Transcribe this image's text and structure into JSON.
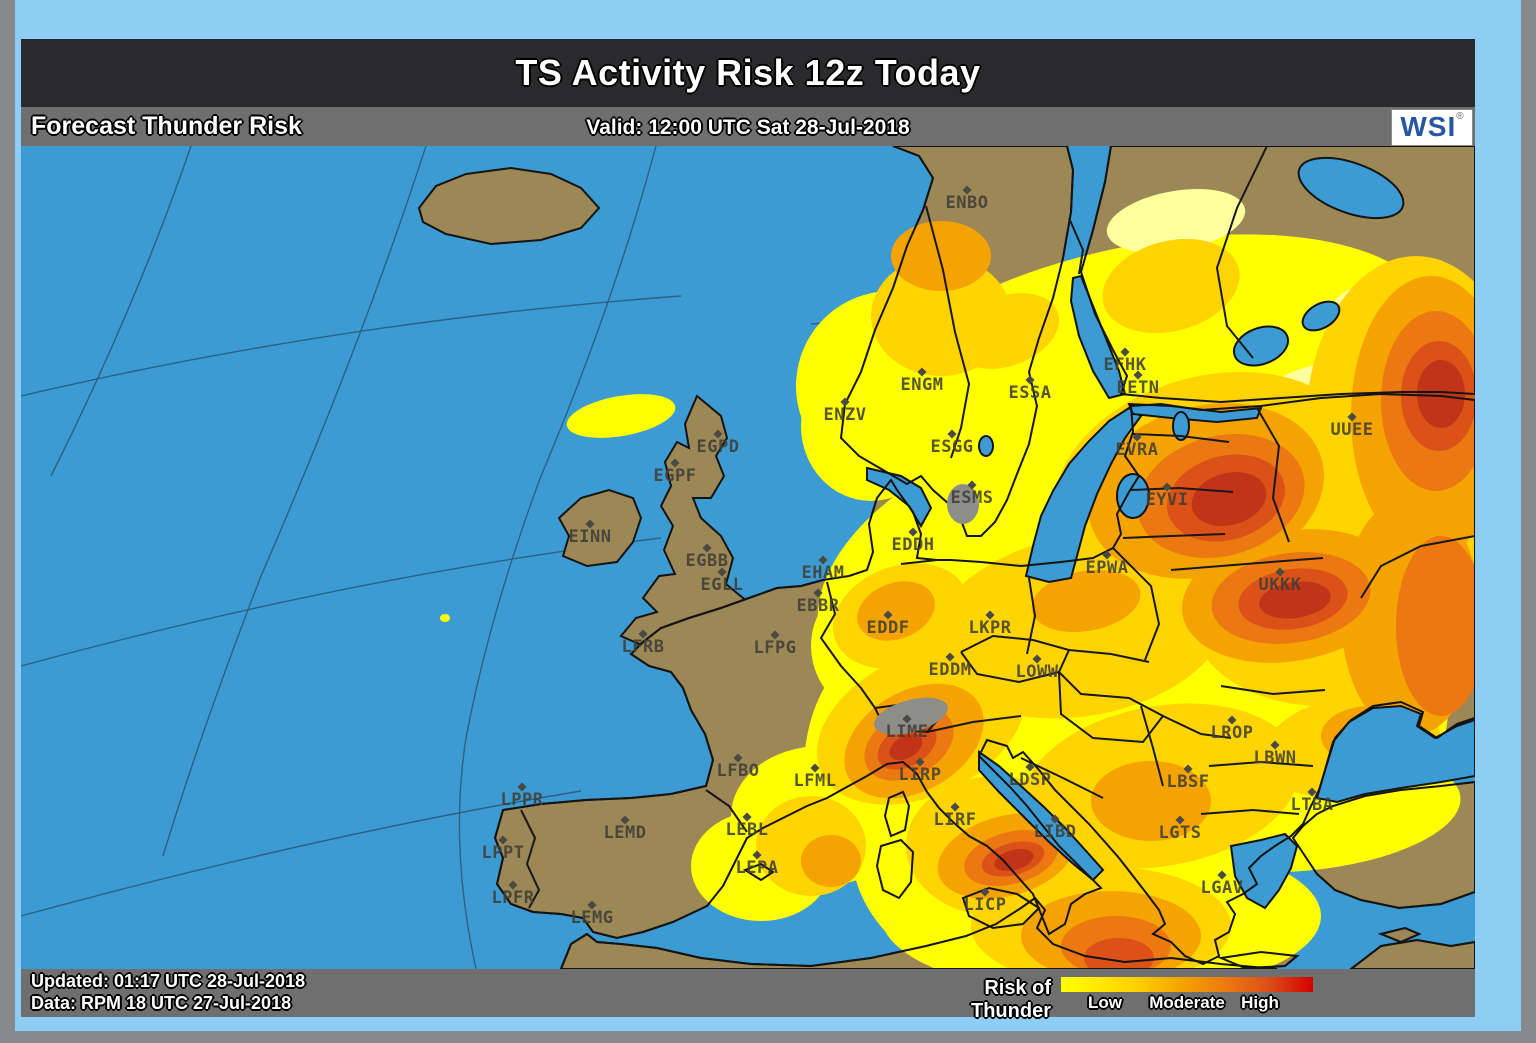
{
  "header": {
    "title": "TS Activity Risk 12z Today",
    "product": "Forecast Thunder Risk",
    "valid": "Valid: 12:00 UTC Sat 28-Jul-2018",
    "logo": "WSI",
    "logo_reg": "®"
  },
  "footer": {
    "updated": "Updated: 01:17 UTC 28-Jul-2018",
    "data_source": "Data: RPM 18 UTC 27-Jul-2018",
    "legend_title": "Risk of Thunder",
    "legend_labels": {
      "low": "Low",
      "moderate": "Moderate",
      "high": "High"
    }
  },
  "palette": {
    "page_bg": "#87898D",
    "frame_blue": "#8FCEF4",
    "title_bg": "#2A2A2C",
    "bar_gray": "#6F6F6F",
    "sea": "#3D9BD3",
    "land": "#9C8756",
    "coast": "#141414",
    "border": "#181818",
    "graticule": "#1E3340",
    "gray_patch": "#8E8E88",
    "wsi_blue": "#2757A4",
    "legend_high_end": "#D40000"
  },
  "map": {
    "risk_levels": [
      "#FFFF9E",
      "#FFFF00",
      "#FFD400",
      "#F5A300",
      "#EC7812",
      "#DB5118",
      "#C23418"
    ],
    "risk_blobs": [
      [
        1,
        870,
        240,
        95,
        95,
        0
      ],
      [
        1,
        1120,
        230,
        300,
        130,
        -12
      ],
      [
        1,
        1390,
        360,
        100,
        180,
        0
      ],
      [
        1,
        1070,
        420,
        280,
        150,
        -15
      ],
      [
        1,
        980,
        570,
        200,
        110,
        -25
      ],
      [
        1,
        1150,
        600,
        280,
        150,
        -10
      ],
      [
        1,
        970,
        700,
        140,
        130,
        0
      ],
      [
        1,
        830,
        600,
        45,
        90,
        10
      ],
      [
        1,
        800,
        670,
        90,
        70,
        0
      ],
      [
        1,
        740,
        720,
        70,
        55,
        0
      ],
      [
        1,
        1080,
        770,
        220,
        80,
        0
      ],
      [
        1,
        1280,
        665,
        160,
        60,
        -5
      ],
      [
        1,
        850,
        280,
        70,
        75,
        0
      ],
      [
        1,
        600,
        270,
        55,
        20,
        -10
      ],
      [
        1,
        424,
        472,
        5,
        4,
        0
      ],
      [
        1,
        880,
        500,
        90,
        80,
        0
      ],
      [
        0,
        1300,
        290,
        110,
        70,
        -20
      ],
      [
        0,
        1365,
        175,
        60,
        40,
        0
      ],
      [
        0,
        1155,
        75,
        70,
        30,
        -10
      ],
      [
        2,
        1190,
        340,
        160,
        110,
        -15
      ],
      [
        2,
        1395,
        280,
        110,
        170,
        0
      ],
      [
        2,
        920,
        170,
        70,
        60,
        0
      ],
      [
        2,
        985,
        185,
        55,
        35,
        -20
      ],
      [
        2,
        1150,
        140,
        70,
        45,
        -15
      ],
      [
        2,
        1060,
        480,
        150,
        90,
        -10
      ],
      [
        2,
        900,
        580,
        110,
        70,
        -25
      ],
      [
        2,
        1140,
        640,
        140,
        80,
        -10
      ],
      [
        2,
        975,
        700,
        90,
        70,
        0
      ],
      [
        2,
        1080,
        780,
        130,
        60,
        0
      ],
      [
        2,
        790,
        700,
        55,
        50,
        0
      ],
      [
        2,
        880,
        470,
        70,
        50,
        -20
      ],
      [
        2,
        1300,
        470,
        130,
        90,
        0
      ],
      [
        2,
        1330,
        600,
        90,
        50,
        -10
      ],
      [
        3,
        1185,
        345,
        120,
        85,
        -15
      ],
      [
        3,
        1410,
        270,
        80,
        140,
        0
      ],
      [
        3,
        1270,
        450,
        110,
        65,
        -10
      ],
      [
        3,
        893,
        595,
        75,
        50,
        -30
      ],
      [
        3,
        985,
        710,
        70,
        40,
        -15
      ],
      [
        3,
        1090,
        790,
        90,
        45,
        0
      ],
      [
        3,
        810,
        715,
        30,
        26,
        0
      ],
      [
        3,
        1130,
        655,
        60,
        40,
        0
      ],
      [
        3,
        1065,
        455,
        55,
        30,
        -10
      ],
      [
        3,
        875,
        465,
        40,
        28,
        -20
      ],
      [
        3,
        1390,
        470,
        70,
        120,
        0
      ],
      [
        3,
        920,
        110,
        50,
        35,
        0
      ],
      [
        3,
        1350,
        590,
        50,
        30,
        0
      ],
      [
        4,
        1200,
        350,
        85,
        60,
        -15
      ],
      [
        4,
        1415,
        255,
        55,
        90,
        0
      ],
      [
        4,
        1270,
        452,
        80,
        45,
        -8
      ],
      [
        4,
        888,
        598,
        48,
        32,
        -30
      ],
      [
        4,
        990,
        712,
        48,
        26,
        -15
      ],
      [
        4,
        1095,
        800,
        55,
        30,
        0
      ],
      [
        4,
        1420,
        480,
        45,
        90,
        0
      ],
      [
        5,
        1205,
        352,
        60,
        42,
        -15
      ],
      [
        5,
        1418,
        250,
        38,
        55,
        0
      ],
      [
        5,
        1272,
        453,
        55,
        30,
        -8
      ],
      [
        5,
        886,
        600,
        32,
        20,
        -30
      ],
      [
        5,
        992,
        713,
        32,
        16,
        -15
      ],
      [
        5,
        1098,
        812,
        35,
        20,
        0
      ],
      [
        6,
        1208,
        353,
        38,
        26,
        -15
      ],
      [
        6,
        1420,
        248,
        24,
        34,
        0
      ],
      [
        6,
        1274,
        454,
        36,
        18,
        -8
      ],
      [
        6,
        885,
        601,
        18,
        11,
        -30
      ],
      [
        6,
        993,
        714,
        20,
        10,
        -15
      ]
    ],
    "stations": [
      [
        "ENBO",
        946,
        62
      ],
      [
        "EGPD",
        697,
        306
      ],
      [
        "EGPF",
        654,
        335
      ],
      [
        "EINN",
        569,
        396
      ],
      [
        "EGBB",
        686,
        420
      ],
      [
        "EGLL",
        701,
        444
      ],
      [
        "ENZV",
        824,
        274
      ],
      [
        "ENGM",
        901,
        244
      ],
      [
        "ESGG",
        931,
        306
      ],
      [
        "ESMS",
        951,
        357
      ],
      [
        "ESSA",
        1009,
        252
      ],
      [
        "EFHK",
        1104,
        224
      ],
      [
        "EETN",
        1117,
        247
      ],
      [
        "EVRA",
        1116,
        309
      ],
      [
        "EYVI",
        1146,
        359
      ],
      [
        "UUEE",
        1331,
        289
      ],
      [
        "UKKK",
        1259,
        444
      ],
      [
        "EDDH",
        892,
        404
      ],
      [
        "EHAM",
        802,
        432
      ],
      [
        "EBBR",
        797,
        465
      ],
      [
        "EDDF",
        867,
        487
      ],
      [
        "LKPR",
        969,
        487
      ],
      [
        "EPWA",
        1086,
        427
      ],
      [
        "EDDM",
        929,
        529
      ],
      [
        "LOWW",
        1016,
        531
      ],
      [
        "LFPG",
        754,
        507
      ],
      [
        "LFRB",
        622,
        506
      ],
      [
        "LFBO",
        717,
        630
      ],
      [
        "LFML",
        794,
        640
      ],
      [
        "LIME",
        886,
        591
      ],
      [
        "LIRP",
        899,
        634
      ],
      [
        "LIRF",
        934,
        679
      ],
      [
        "LIBD",
        1034,
        691
      ],
      [
        "LICP",
        964,
        764
      ],
      [
        "LDSP",
        1009,
        639
      ],
      [
        "LROP",
        1211,
        592
      ],
      [
        "LBWN",
        1254,
        617
      ],
      [
        "LBSF",
        1167,
        641
      ],
      [
        "LTBA",
        1291,
        664
      ],
      [
        "LGTS",
        1159,
        692
      ],
      [
        "LGAV",
        1201,
        747
      ],
      [
        "LEMD",
        604,
        692
      ],
      [
        "LEBL",
        726,
        689
      ],
      [
        "LEPA",
        736,
        727
      ],
      [
        "LPPR",
        501,
        659
      ],
      [
        "LPPT",
        482,
        712
      ],
      [
        "LPFR",
        492,
        757
      ],
      [
        "LEMG",
        571,
        777
      ]
    ]
  }
}
